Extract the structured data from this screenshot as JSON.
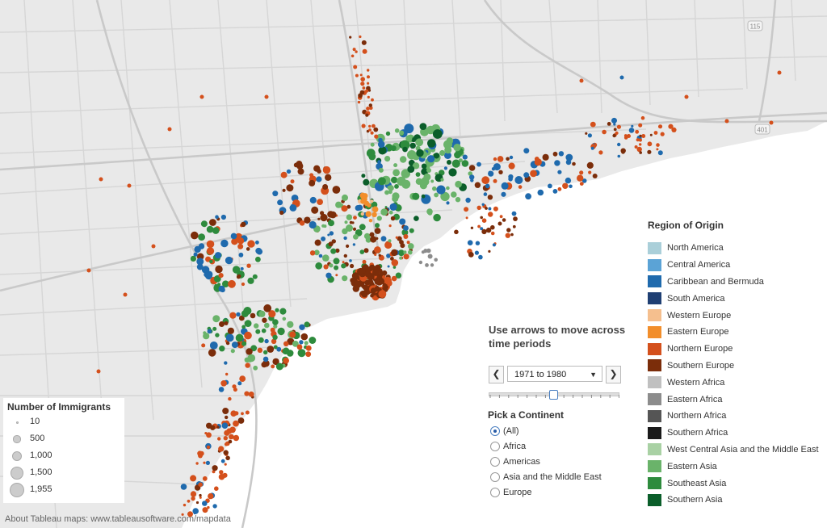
{
  "map": {
    "colors": {
      "land": "#e9e9e9",
      "water": "#ffffff",
      "road": "#d6d6d6",
      "highway": "#c9c9c9"
    },
    "highway_shields": [
      "115",
      "401"
    ]
  },
  "regions": [
    {
      "label": "North America",
      "color": "#aacfd9"
    },
    {
      "label": "Central America",
      "color": "#5ba3d6"
    },
    {
      "label": "Caribbean and Bermuda",
      "color": "#1f6aad"
    },
    {
      "label": "South America",
      "color": "#1f3f73"
    },
    {
      "label": "Western Europe",
      "color": "#f5bf8e"
    },
    {
      "label": "Eastern Europe",
      "color": "#f28e2b"
    },
    {
      "label": "Northern Europe",
      "color": "#d4501c"
    },
    {
      "label": "Southern Europe",
      "color": "#7b2d0a"
    },
    {
      "label": "Western Africa",
      "color": "#c0c0c0"
    },
    {
      "label": "Eastern Africa",
      "color": "#8c8c8c"
    },
    {
      "label": "Northern Africa",
      "color": "#555555"
    },
    {
      "label": "Southern Africa",
      "color": "#1a1a1a"
    },
    {
      "label": "West Central Asia and the Middle East",
      "color": "#a9d1a4"
    },
    {
      "label": "Eastern Asia",
      "color": "#6ab36a"
    },
    {
      "label": "Southeast Asia",
      "color": "#2e8b3d"
    },
    {
      "label": "Southern Asia",
      "color": "#0b5e2a"
    }
  ],
  "legend_region": {
    "title": "Region of Origin"
  },
  "legend_size": {
    "title": "Number of Immigrants",
    "entries": [
      {
        "label": "10",
        "value": 10
      },
      {
        "label": "500",
        "value": 500
      },
      {
        "label": "1,000",
        "value": 1000
      },
      {
        "label": "1,500",
        "value": 1500
      },
      {
        "label": "1,955",
        "value": 1955
      }
    ]
  },
  "time_control": {
    "title": "Use arrows to move across time periods",
    "prev_label": "❮",
    "next_label": "❯",
    "selected_period": "1971 to 1980",
    "caret": "▼"
  },
  "continent_filter": {
    "title": "Pick a Continent",
    "options": [
      "(All)",
      "Africa",
      "Americas",
      "Asia and the Middle East",
      "Europe"
    ],
    "selected": "(All)"
  },
  "attribution": "About Tableau maps: www.tableausoftware.com/mapdata"
}
